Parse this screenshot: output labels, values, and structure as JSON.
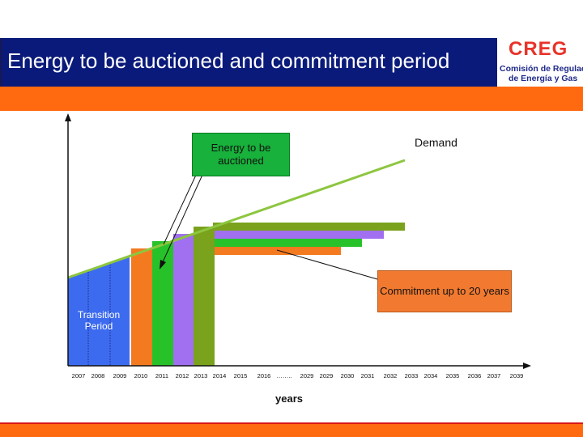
{
  "header": {
    "title": "Energy to be auctioned and commitment period",
    "logo_mark": "CREG",
    "logo_line1": "Comisión de Regulación",
    "logo_line2": "de Energía y Gas"
  },
  "colors": {
    "title_bg": "#0a1a7a",
    "accent_orange": "#ff6a10",
    "demand_line": "#8dc63f",
    "blue": "#3d6bf0",
    "orange": "#f47a20",
    "green": "#27c22a",
    "purple": "#a070f0",
    "olive": "#7aa21c"
  },
  "diagram": {
    "energy_box": "Energy to be auctioned",
    "demand_label": "Demand",
    "commitment_box": "Commitment up to 20 years",
    "transition_label": "Transition Period",
    "x_axis_label": "years",
    "x_ticks": [
      "2007",
      "2008",
      "2009",
      "2010",
      "2011",
      "2012",
      "2013",
      "2014",
      "2015",
      "2016",
      "……..",
      "2029",
      "2029",
      "2030",
      "2031",
      "2032",
      "2033",
      "2034",
      "2035",
      "2036",
      "2037",
      "2039"
    ]
  }
}
